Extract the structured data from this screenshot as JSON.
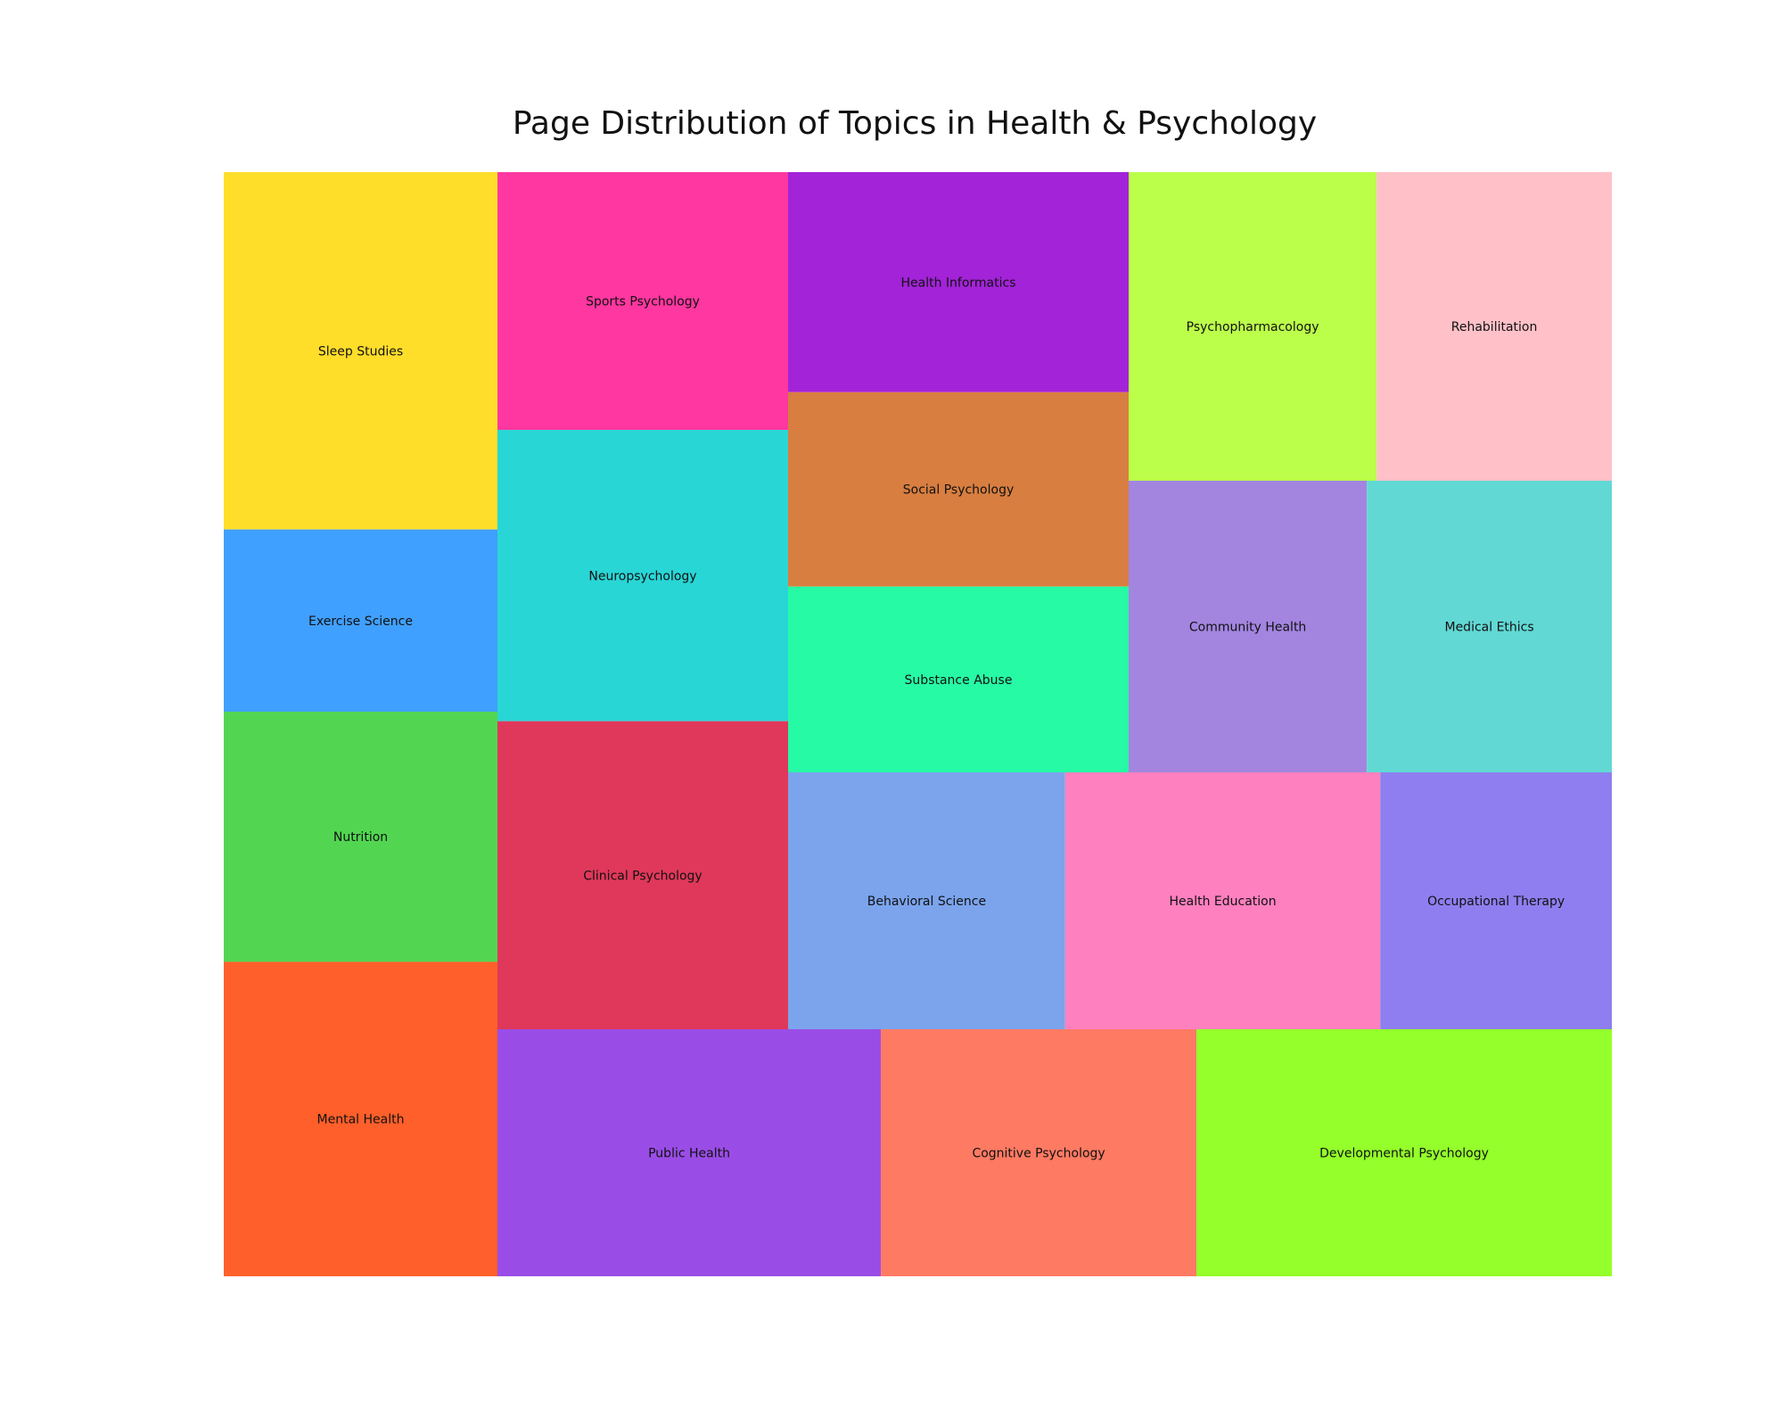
{
  "chart_data": {
    "type": "treemap",
    "title": "Page Distribution of Topics in Health & Psychology",
    "items": [
      {
        "label": "Sleep Studies",
        "value": 1.0,
        "color": "#FFDE2A",
        "group": 0
      },
      {
        "label": "Exercise Science",
        "value": 0.51,
        "color": "#40A0FF",
        "group": 0
      },
      {
        "label": "Nutrition",
        "value": 0.7,
        "color": "#52D652",
        "group": 0
      },
      {
        "label": "Mental Health",
        "value": 0.88,
        "color": "#FF5F2A",
        "group": 0
      },
      {
        "label": "Sports Psychology",
        "value": 0.77,
        "color": "#FF37A0",
        "group": 1
      },
      {
        "label": "Neuropsychology",
        "value": 0.87,
        "color": "#29D6D6",
        "group": 1
      },
      {
        "label": "Clinical Psychology",
        "value": 0.92,
        "color": "#E0385A",
        "group": 1
      },
      {
        "label": "Health Informatics",
        "value": 0.77,
        "color": "#A323D8",
        "group": 2
      },
      {
        "label": "Social Psychology",
        "value": 0.68,
        "color": "#D87E40",
        "group": 2
      },
      {
        "label": "Substance Abuse",
        "value": 0.65,
        "color": "#26FAA5",
        "group": 2
      },
      {
        "label": "Psychopharmacology",
        "value": 0.78,
        "color": "#BBFF4A",
        "group": 3
      },
      {
        "label": "Rehabilitation",
        "value": 0.74,
        "color": "#FFC0C8",
        "group": 3
      },
      {
        "label": "Community Health",
        "value": 0.7,
        "color": "#A385E0",
        "group": 4
      },
      {
        "label": "Medical Ethics",
        "value": 0.72,
        "color": "#62D8D4",
        "group": 4
      },
      {
        "label": "Behavioral Science",
        "value": 0.73,
        "color": "#7BA4ED",
        "group": 5
      },
      {
        "label": "Health Education",
        "value": 0.83,
        "color": "#FF80BF",
        "group": 5
      },
      {
        "label": "Occupational Therapy",
        "value": 0.61,
        "color": "#8E7EEF",
        "group": 5
      },
      {
        "label": "Public Health",
        "value": 0.96,
        "color": "#9A4DE6",
        "group": 6
      },
      {
        "label": "Cognitive Psychology",
        "value": 0.79,
        "color": "#FF7A63",
        "group": 6
      },
      {
        "label": "Developmental Psychology",
        "value": 1.04,
        "color": "#94FF2A",
        "group": 6
      }
    ]
  }
}
